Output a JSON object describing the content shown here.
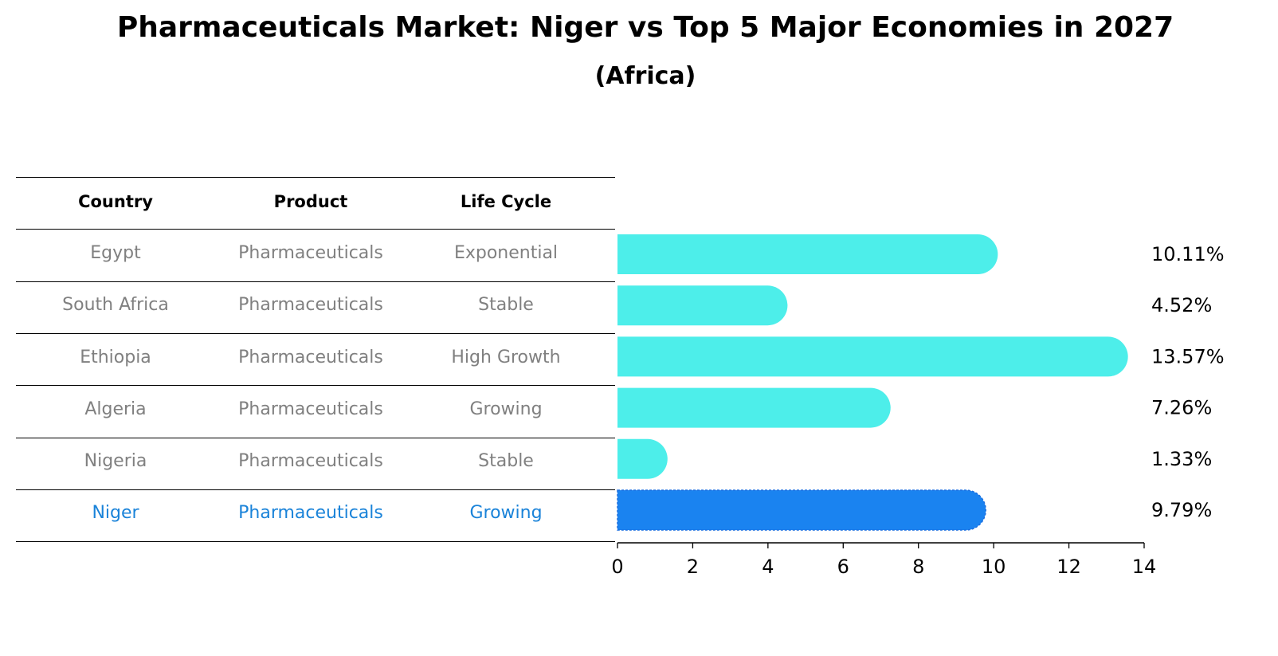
{
  "title": "Pharmaceuticals Market: Niger vs Top 5 Major Economies in 2027",
  "subtitle": "(Africa)",
  "table": {
    "headers": [
      "Country",
      "Product",
      "Life Cycle"
    ],
    "rows": [
      [
        "Egypt",
        "Pharmaceuticals",
        "Exponential"
      ],
      [
        "South Africa",
        "Pharmaceuticals",
        "Stable"
      ],
      [
        "Ethiopia",
        "Pharmaceuticals",
        "High Growth"
      ],
      [
        "Algeria",
        "Pharmaceuticals",
        "Growing"
      ],
      [
        "Nigeria",
        "Pharmaceuticals",
        "Stable"
      ],
      [
        "Niger",
        "Pharmaceuticals",
        "Growing"
      ]
    ],
    "highlight_row": 5
  },
  "colors": {
    "bar": "#4deeea",
    "highlight_bar": "#1a83f0",
    "highlight_text": "#1a83d9",
    "body_text": "#808080"
  },
  "chart_data": {
    "type": "bar",
    "orientation": "horizontal",
    "categories": [
      "Egypt",
      "South Africa",
      "Ethiopia",
      "Algeria",
      "Nigeria",
      "Niger"
    ],
    "values": [
      10.11,
      4.52,
      13.57,
      7.26,
      1.33,
      9.79
    ],
    "value_labels": [
      "10.11%",
      "4.52%",
      "13.57%",
      "7.26%",
      "1.33%",
      "9.79%"
    ],
    "xlim": [
      0,
      14
    ],
    "xticks": [
      0,
      2,
      4,
      6,
      8,
      10,
      12,
      14
    ],
    "highlight": "Niger",
    "xlabel": "",
    "ylabel": ""
  }
}
